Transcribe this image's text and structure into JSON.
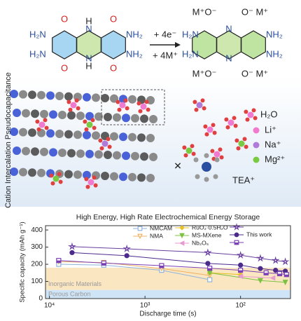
{
  "reaction": {
    "left_amines": [
      "H₂N",
      "H₂N"
    ],
    "right_amines": [
      "NH₂",
      "NH₂"
    ],
    "oxygen": "O",
    "nitrogen": "N",
    "hydrogen": "H",
    "reagents": [
      "+ 4e⁻",
      "+ 4M⁺"
    ],
    "product_left": [
      "M⁺O⁻",
      "M⁺O⁻"
    ],
    "product_right": [
      "O⁻ M⁺",
      "O⁻ M⁺"
    ]
  },
  "intercalation": {
    "title": "Cation Intercalation Pseudocapacitance",
    "legend": [
      "H₂O",
      "Li⁺",
      "Na⁺",
      "Mg²⁺"
    ],
    "blocked_cation": "TEA⁺"
  },
  "chart_data": {
    "type": "line",
    "title": "High Energy, High Rate Electrochemical Energy Storage",
    "xlabel": "Discharge time (s)",
    "ylabel": "Specific capacity (mAh g⁻¹)",
    "xscale": "log",
    "xlim": [
      11000,
      30
    ],
    "xticks": [
      {
        "value": 10000,
        "label": "10⁴"
      },
      {
        "value": 1000,
        "label": "10³"
      },
      {
        "value": 100,
        "label": "10²"
      }
    ],
    "ylim": [
      0,
      425
    ],
    "yticks": [
      0,
      100,
      200,
      300,
      400
    ],
    "regions": [
      {
        "label": "Inorganic Materials",
        "range": [
          50,
          180
        ],
        "color": "#fbe6c2"
      },
      {
        "label": "Porous Carbon",
        "range": [
          0,
          50
        ],
        "color": "#cfe4f6"
      }
    ],
    "series": [
      {
        "name": "NMCAM",
        "color": "#8fb3d9",
        "marker": "square-open",
        "x": [
          8000,
          2700,
          670,
          210
        ],
        "values": [
          200,
          195,
          165,
          110
        ]
      },
      {
        "name": "NMA",
        "color": "#f0b060",
        "marker": "triangle-down-open",
        "x": [
          8000,
          2700,
          670,
          210
        ],
        "values": [
          215,
          210,
          175,
          135
        ]
      },
      {
        "name": "RuO₂·0.5H₂O",
        "color": "#e8c020",
        "marker": "diamond",
        "x": [
          210,
          100
        ],
        "values": [
          150,
          140
        ]
      },
      {
        "name": "MS-MXene",
        "color": "#7cc242",
        "marker": "triangle-down",
        "x": [
          210,
          62,
          34
        ],
        "values": [
          150,
          105,
          95
        ]
      },
      {
        "name": "Nb₂O₅",
        "color": "#e79ad0",
        "marker": "triangle-left",
        "x": [
          100,
          46
        ],
        "values": [
          130,
          120
        ]
      },
      {
        "color": "#6a3fa0",
        "marker": "star",
        "x": [
          5800,
          1550,
          220,
          100,
          62,
          43,
          34
        ],
        "values": [
          303,
          290,
          268,
          253,
          235,
          222,
          215
        ]
      },
      {
        "name": "This work",
        "color": "#4b2a8c",
        "marker": "circle",
        "x": [
          5800,
          1550,
          220,
          100,
          62,
          43,
          34
        ],
        "values": [
          268,
          250,
          205,
          195,
          175,
          165,
          160
        ]
      },
      {
        "color": "#7a3fb5",
        "marker": "square-half",
        "x": [
          8000,
          2700,
          670,
          210,
          100,
          54,
          39,
          33
        ],
        "values": [
          222,
          207,
          192,
          177,
          165,
          150,
          145,
          140
        ]
      }
    ]
  }
}
